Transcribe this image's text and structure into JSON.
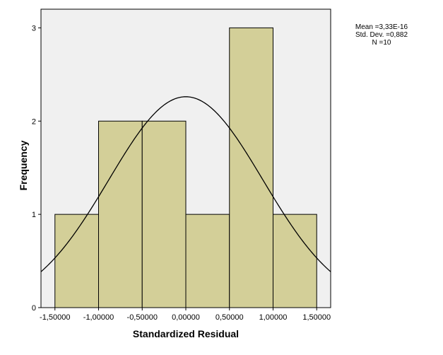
{
  "chart_data": {
    "type": "bar",
    "title": "",
    "xlabel": "Standardized Residual",
    "ylabel": "Frequency",
    "bins": [
      {
        "start": -1.5,
        "end": -1.0,
        "count": 1
      },
      {
        "start": -1.0,
        "end": -0.5,
        "count": 2
      },
      {
        "start": -0.5,
        "end": 0.0,
        "count": 2
      },
      {
        "start": 0.0,
        "end": 0.5,
        "count": 1
      },
      {
        "start": 0.5,
        "end": 1.0,
        "count": 3
      },
      {
        "start": 1.0,
        "end": 1.5,
        "count": 1
      }
    ],
    "xlim": [
      -1.66,
      1.66
    ],
    "ylim": [
      0,
      3.2
    ],
    "x_ticks": [
      -1.5,
      -1.0,
      -0.5,
      0.0,
      0.5,
      1.0,
      1.5
    ],
    "x_tick_labels": [
      "-1,50000",
      "-1,00000",
      "-0,50000",
      "0,00000",
      "0,50000",
      "1,00000",
      "1,50000"
    ],
    "y_ticks": [
      0,
      1,
      2,
      3
    ],
    "y_tick_labels": [
      "0",
      "1",
      "2",
      "3"
    ],
    "normal_curve": {
      "mean": 0.0,
      "std": 0.882,
      "n": 10,
      "bin_width": 0.5
    },
    "stats": {
      "mean_label": "Mean =3,33E-16",
      "std_label": "Std. Dev. =0,882",
      "n_label": "N =10"
    },
    "colors": {
      "bar_fill": "#d3cf98",
      "plot_background": "#f0f0f0",
      "bar_stroke": "#000000",
      "curve": "#000000"
    }
  }
}
